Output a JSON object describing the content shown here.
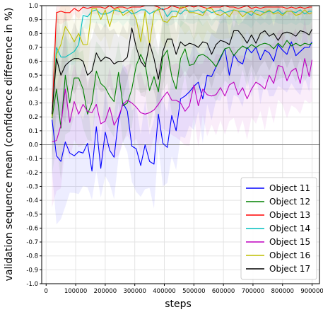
{
  "chart_data": {
    "type": "line",
    "xlabel": "steps",
    "ylabel": "validation sequence mean (confidence difference in %)",
    "xlim": [
      -15000,
      925000
    ],
    "ylim": [
      -1.0,
      1.0
    ],
    "xticks": [
      0,
      100000,
      200000,
      300000,
      400000,
      500000,
      600000,
      700000,
      800000,
      900000
    ],
    "yticks": [
      -1.0,
      -0.9,
      -0.8,
      -0.7,
      -0.6,
      -0.5,
      -0.4,
      -0.3,
      -0.2,
      -0.1,
      0.0,
      0.1,
      0.2,
      0.3,
      0.4,
      0.5,
      0.6,
      0.7,
      0.8,
      0.9,
      1.0
    ],
    "grid": true,
    "legend_position": "lower-right",
    "x": [
      20000,
      35000,
      50000,
      65000,
      80000,
      95000,
      110000,
      125000,
      140000,
      155000,
      170000,
      185000,
      200000,
      215000,
      230000,
      245000,
      260000,
      275000,
      290000,
      305000,
      320000,
      335000,
      350000,
      365000,
      380000,
      395000,
      410000,
      425000,
      440000,
      455000,
      470000,
      485000,
      500000,
      515000,
      530000,
      545000,
      560000,
      575000,
      590000,
      605000,
      620000,
      635000,
      650000,
      665000,
      680000,
      695000,
      710000,
      725000,
      740000,
      755000,
      770000,
      785000,
      800000,
      815000,
      830000,
      845000,
      860000,
      875000,
      890000,
      900000
    ],
    "series": [
      {
        "name": "Object 11",
        "color": "#0000ff",
        "values": [
          0.18,
          -0.08,
          -0.12,
          0.02,
          -0.06,
          -0.08,
          -0.05,
          -0.06,
          0.01,
          -0.19,
          0.13,
          -0.17,
          0.09,
          -0.04,
          -0.09,
          0.18,
          0.3,
          0.24,
          -0.01,
          -0.03,
          -0.15,
          0.0,
          -0.12,
          -0.14,
          0.22,
          0.01,
          -0.02,
          0.21,
          0.1,
          0.33,
          0.35,
          0.38,
          0.42,
          0.45,
          0.33,
          0.5,
          0.49,
          0.56,
          0.62,
          0.69,
          0.5,
          0.65,
          0.6,
          0.58,
          0.7,
          0.66,
          0.7,
          0.61,
          0.68,
          0.66,
          0.6,
          0.72,
          0.68,
          0.65,
          0.74,
          0.64,
          0.67,
          0.7,
          0.7,
          0.74
        ]
      },
      {
        "name": "Object 12",
        "color": "#008000",
        "values": [
          0.19,
          0.4,
          0.12,
          0.5,
          0.3,
          0.48,
          0.48,
          0.4,
          0.22,
          0.3,
          0.53,
          0.44,
          0.41,
          0.35,
          0.31,
          0.52,
          0.28,
          0.3,
          0.4,
          0.57,
          0.65,
          0.58,
          0.39,
          0.49,
          0.38,
          0.63,
          0.68,
          0.49,
          0.4,
          0.62,
          0.69,
          0.57,
          0.58,
          0.64,
          0.65,
          0.63,
          0.6,
          0.56,
          0.63,
          0.69,
          0.7,
          0.64,
          0.68,
          0.71,
          0.69,
          0.72,
          0.7,
          0.72,
          0.73,
          0.72,
          0.69,
          0.73,
          0.7,
          0.75,
          0.71,
          0.73,
          0.71,
          0.73,
          0.72,
          0.73
        ]
      },
      {
        "name": "Object 13",
        "color": "#ff0000",
        "values": [
          0.2,
          0.95,
          0.96,
          0.95,
          0.95,
          0.98,
          0.96,
          0.99,
          0.98,
          0.99,
          0.99,
          0.99,
          0.98,
          1.0,
          0.98,
          0.99,
          0.99,
          0.98,
          0.99,
          0.99,
          0.99,
          1.0,
          1.0,
          1.0,
          0.99,
          0.97,
          0.98,
          1.0,
          0.99,
          0.98,
          0.99,
          1.0,
          0.99,
          1.0,
          0.99,
          0.98,
          0.99,
          0.99,
          0.99,
          1.0,
          0.99,
          0.99,
          0.98,
          0.99,
          1.0,
          0.98,
          0.99,
          0.98,
          0.99,
          0.99,
          0.99,
          0.99,
          0.99,
          0.98,
          0.99,
          0.98,
          0.99,
          0.98,
          0.99,
          0.99
        ]
      },
      {
        "name": "Object 14",
        "color": "#00bfbf",
        "values": [
          0.2,
          0.7,
          0.63,
          0.63,
          0.65,
          0.67,
          0.72,
          0.93,
          0.92,
          0.96,
          0.97,
          0.94,
          0.94,
          0.95,
          0.97,
          0.96,
          0.95,
          0.97,
          0.94,
          0.95,
          0.97,
          0.97,
          0.94,
          0.96,
          0.97,
          0.98,
          0.92,
          0.96,
          0.96,
          0.94,
          0.97,
          0.96,
          0.96,
          0.97,
          0.95,
          0.97,
          0.95,
          0.96,
          0.97,
          0.95,
          0.96,
          0.97,
          0.96,
          0.96,
          0.95,
          0.93,
          0.97,
          0.96,
          0.95,
          0.96,
          0.95,
          0.97,
          0.94,
          0.96,
          0.96,
          0.95,
          0.97,
          0.94,
          0.96,
          0.96
        ]
      },
      {
        "name": "Object 15",
        "color": "#bf00bf",
        "values": [
          0.02,
          0.03,
          0.14,
          0.4,
          0.16,
          0.31,
          0.22,
          0.29,
          0.24,
          0.23,
          0.29,
          0.15,
          0.17,
          0.27,
          0.14,
          0.2,
          0.29,
          0.32,
          0.3,
          0.27,
          0.23,
          0.22,
          0.23,
          0.25,
          0.29,
          0.34,
          0.38,
          0.32,
          0.32,
          0.3,
          0.24,
          0.28,
          0.43,
          0.28,
          0.4,
          0.36,
          0.35,
          0.36,
          0.41,
          0.35,
          0.43,
          0.45,
          0.36,
          0.41,
          0.33,
          0.4,
          0.45,
          0.43,
          0.4,
          0.5,
          0.44,
          0.57,
          0.56,
          0.46,
          0.53,
          0.55,
          0.44,
          0.62,
          0.49,
          0.61
        ]
      },
      {
        "name": "Object 16",
        "color": "#bfbf00",
        "values": [
          0.2,
          0.65,
          0.72,
          0.85,
          0.8,
          0.74,
          0.8,
          0.72,
          0.72,
          0.98,
          0.98,
          0.9,
          0.97,
          0.85,
          0.97,
          0.98,
          0.93,
          0.95,
          0.97,
          0.9,
          0.74,
          0.96,
          0.72,
          0.95,
          0.98,
          0.89,
          0.88,
          0.92,
          0.92,
          0.99,
          0.99,
          0.95,
          0.95,
          0.94,
          0.93,
          0.98,
          0.98,
          0.94,
          0.93,
          0.95,
          0.92,
          0.97,
          0.96,
          0.92,
          0.95,
          0.96,
          0.94,
          0.93,
          0.95,
          0.97,
          0.94,
          0.95,
          0.93,
          0.96,
          0.96,
          0.93,
          0.94,
          0.97,
          0.94,
          0.95
        ]
      },
      {
        "name": "Object 17",
        "color": "#000000",
        "values": [
          0.22,
          0.62,
          0.5,
          0.57,
          0.6,
          0.62,
          0.62,
          0.6,
          0.5,
          0.53,
          0.66,
          0.6,
          0.63,
          0.62,
          0.58,
          0.6,
          0.6,
          0.63,
          0.84,
          0.7,
          0.6,
          0.56,
          0.73,
          0.62,
          0.47,
          0.67,
          0.76,
          0.76,
          0.65,
          0.74,
          0.71,
          0.73,
          0.72,
          0.7,
          0.74,
          0.73,
          0.65,
          0.72,
          0.75,
          0.74,
          0.72,
          0.82,
          0.82,
          0.78,
          0.73,
          0.79,
          0.73,
          0.8,
          0.82,
          0.78,
          0.8,
          0.75,
          0.8,
          0.81,
          0.8,
          0.78,
          0.82,
          0.81,
          0.79,
          0.83
        ]
      }
    ]
  }
}
